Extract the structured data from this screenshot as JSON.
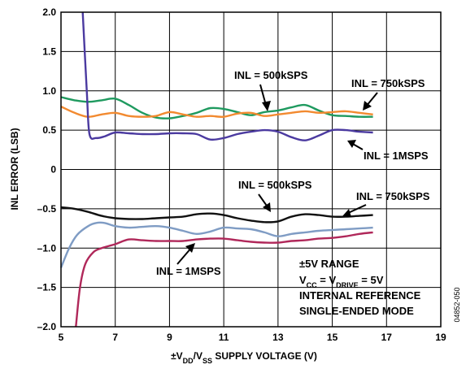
{
  "chart_data": {
    "type": "line",
    "xlabel": {
      "pre": "±V",
      "sub1": "DD",
      "mid": "/V",
      "sub2": "SS",
      "post": " SUPPLY VOLTAGE (V)"
    },
    "ylabel": "INL ERROR (LSB)",
    "xlim": [
      5,
      19
    ],
    "ylim": [
      -2.0,
      2.0
    ],
    "x_ticks": [
      "5",
      "7",
      "9",
      "11",
      "13",
      "15",
      "17",
      "19"
    ],
    "y_ticks": [
      "2.0",
      "1.5",
      "1.0",
      "0.5",
      "0",
      "–0.5",
      "–1.0",
      "–1.5",
      "–2.0"
    ],
    "grid": true,
    "series": [
      {
        "name": "INL = 500kSPS",
        "group": "positive",
        "color": "#1f9a5f",
        "points": [
          [
            5,
            0.92
          ],
          [
            5.5,
            0.88
          ],
          [
            6,
            0.86
          ],
          [
            6.5,
            0.88
          ],
          [
            7,
            0.9
          ],
          [
            7.5,
            0.82
          ],
          [
            8,
            0.72
          ],
          [
            8.5,
            0.66
          ],
          [
            9,
            0.65
          ],
          [
            9.5,
            0.68
          ],
          [
            10,
            0.72
          ],
          [
            10.5,
            0.78
          ],
          [
            11,
            0.77
          ],
          [
            11.5,
            0.73
          ],
          [
            12,
            0.69
          ],
          [
            12.5,
            0.73
          ],
          [
            13,
            0.75
          ],
          [
            13.5,
            0.79
          ],
          [
            14,
            0.82
          ],
          [
            14.5,
            0.75
          ],
          [
            15,
            0.69
          ],
          [
            15.5,
            0.68
          ],
          [
            16,
            0.67
          ],
          [
            16.5,
            0.67
          ]
        ]
      },
      {
        "name": "INL = 750kSPS",
        "group": "positive",
        "color": "#f28a30",
        "points": [
          [
            5,
            0.8
          ],
          [
            5.5,
            0.72
          ],
          [
            6,
            0.67
          ],
          [
            6.5,
            0.7
          ],
          [
            7,
            0.72
          ],
          [
            7.5,
            0.68
          ],
          [
            8,
            0.67
          ],
          [
            8.5,
            0.68
          ],
          [
            9,
            0.73
          ],
          [
            9.5,
            0.7
          ],
          [
            10,
            0.67
          ],
          [
            10.5,
            0.68
          ],
          [
            11,
            0.67
          ],
          [
            11.5,
            0.71
          ],
          [
            12,
            0.72
          ],
          [
            12.5,
            0.68
          ],
          [
            13,
            0.7
          ],
          [
            13.5,
            0.72
          ],
          [
            14,
            0.74
          ],
          [
            14.5,
            0.72
          ],
          [
            15,
            0.73
          ],
          [
            15.5,
            0.74
          ],
          [
            16,
            0.72
          ],
          [
            16.5,
            0.7
          ]
        ]
      },
      {
        "name": "INL = 1MSPS",
        "group": "positive",
        "color": "#4b3aa0",
        "points": [
          [
            5.8,
            2.0
          ],
          [
            5.95,
            1.0
          ],
          [
            6.05,
            0.45
          ],
          [
            6.3,
            0.4
          ],
          [
            6.6,
            0.42
          ],
          [
            7,
            0.47
          ],
          [
            7.5,
            0.46
          ],
          [
            8,
            0.45
          ],
          [
            8.5,
            0.45
          ],
          [
            9,
            0.46
          ],
          [
            9.5,
            0.46
          ],
          [
            10,
            0.45
          ],
          [
            10.5,
            0.38
          ],
          [
            11,
            0.4
          ],
          [
            11.5,
            0.45
          ],
          [
            12,
            0.48
          ],
          [
            12.5,
            0.5
          ],
          [
            13,
            0.48
          ],
          [
            13.5,
            0.41
          ],
          [
            14,
            0.37
          ],
          [
            14.5,
            0.43
          ],
          [
            15,
            0.5
          ],
          [
            15.5,
            0.5
          ],
          [
            16,
            0.48
          ],
          [
            16.5,
            0.47
          ]
        ]
      },
      {
        "name": "INL = 500kSPS",
        "group": "negative",
        "color": "#111111",
        "points": [
          [
            5,
            -0.48
          ],
          [
            5.5,
            -0.5
          ],
          [
            6,
            -0.54
          ],
          [
            6.5,
            -0.59
          ],
          [
            7,
            -0.62
          ],
          [
            7.5,
            -0.63
          ],
          [
            8,
            -0.63
          ],
          [
            8.5,
            -0.62
          ],
          [
            9,
            -0.61
          ],
          [
            9.5,
            -0.6
          ],
          [
            10,
            -0.57
          ],
          [
            10.5,
            -0.56
          ],
          [
            11,
            -0.58
          ],
          [
            11.5,
            -0.62
          ],
          [
            12,
            -0.65
          ],
          [
            12.5,
            -0.67
          ],
          [
            13,
            -0.66
          ],
          [
            13.5,
            -0.6
          ],
          [
            14,
            -0.57
          ],
          [
            14.5,
            -0.58
          ],
          [
            15,
            -0.6
          ],
          [
            15.5,
            -0.6
          ],
          [
            16,
            -0.59
          ],
          [
            16.5,
            -0.58
          ]
        ]
      },
      {
        "name": "INL = 750kSPS",
        "group": "negative",
        "color": "#7f9cc4",
        "points": [
          [
            5,
            -1.25
          ],
          [
            5.3,
            -1.0
          ],
          [
            5.6,
            -0.83
          ],
          [
            6,
            -0.72
          ],
          [
            6.3,
            -0.68
          ],
          [
            6.6,
            -0.68
          ],
          [
            7,
            -0.72
          ],
          [
            7.5,
            -0.74
          ],
          [
            8,
            -0.73
          ],
          [
            8.5,
            -0.72
          ],
          [
            9,
            -0.74
          ],
          [
            9.5,
            -0.78
          ],
          [
            10,
            -0.82
          ],
          [
            10.5,
            -0.79
          ],
          [
            11,
            -0.74
          ],
          [
            11.5,
            -0.75
          ],
          [
            12,
            -0.76
          ],
          [
            12.5,
            -0.8
          ],
          [
            13,
            -0.85
          ],
          [
            13.5,
            -0.82
          ],
          [
            14,
            -0.8
          ],
          [
            14.5,
            -0.78
          ],
          [
            15,
            -0.77
          ],
          [
            15.5,
            -0.76
          ],
          [
            16,
            -0.75
          ],
          [
            16.5,
            -0.74
          ]
        ]
      },
      {
        "name": "INL = 1MSPS",
        "group": "negative",
        "color": "#b0285a",
        "points": [
          [
            5.55,
            -2.0
          ],
          [
            5.7,
            -1.5
          ],
          [
            5.9,
            -1.2
          ],
          [
            6.2,
            -1.05
          ],
          [
            6.5,
            -1.0
          ],
          [
            7,
            -0.95
          ],
          [
            7.5,
            -0.89
          ],
          [
            8,
            -0.9
          ],
          [
            8.5,
            -0.91
          ],
          [
            9,
            -0.91
          ],
          [
            9.5,
            -0.91
          ],
          [
            10,
            -0.89
          ],
          [
            10.5,
            -0.88
          ],
          [
            11,
            -0.88
          ],
          [
            11.5,
            -0.9
          ],
          [
            12,
            -0.92
          ],
          [
            12.5,
            -0.93
          ],
          [
            13,
            -0.93
          ],
          [
            13.5,
            -0.91
          ],
          [
            14,
            -0.9
          ],
          [
            14.5,
            -0.88
          ],
          [
            15,
            -0.87
          ],
          [
            15.5,
            -0.85
          ],
          [
            16,
            -0.82
          ],
          [
            16.5,
            -0.8
          ]
        ]
      }
    ],
    "annotations": {
      "pos_500k": "INL = 500kSPS",
      "pos_750k": "INL = 750kSPS",
      "pos_1m": "INL = 1MSPS",
      "neg_500k": "INL = 500kSPS",
      "neg_750k": "INL = 750kSPS",
      "neg_1m": "INL = 1MSPS"
    },
    "conditions": {
      "line1": "±5V RANGE",
      "line2": {
        "a": "V",
        "a_sub": "CC",
        "b": " = V",
        "b_sub": "DRIVE",
        "c": " = 5V"
      },
      "line3": "INTERNAL REFERENCE",
      "line4": "SINGLE-ENDED MODE"
    },
    "figure_id": "04852-050"
  }
}
